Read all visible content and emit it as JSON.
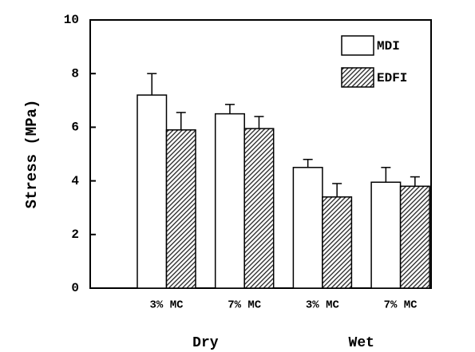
{
  "chart_data": {
    "type": "bar",
    "y_label": "Stress (MPa)",
    "categories": [
      "3% MC",
      "7% MC",
      "3% MC",
      "7% MC"
    ],
    "group_labels": [
      "Dry",
      "Wet"
    ],
    "series": [
      {
        "name": "MDI",
        "color": "#ffffff",
        "values": [
          7.2,
          6.5,
          4.5,
          3.95
        ],
        "errors": [
          0.8,
          0.35,
          0.3,
          0.55
        ]
      },
      {
        "name": "EDFI",
        "color": "#222222",
        "pattern": "hatch",
        "values": [
          5.9,
          5.95,
          3.4,
          3.8
        ],
        "errors": [
          0.65,
          0.45,
          0.5,
          0.35
        ]
      }
    ],
    "ylim": [
      0,
      10
    ],
    "yticks": [
      0,
      2,
      4,
      6,
      8,
      10
    ],
    "legend": "upper right"
  }
}
